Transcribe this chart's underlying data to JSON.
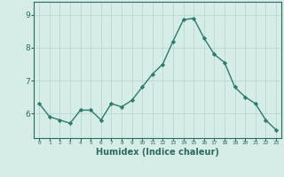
{
  "x": [
    0,
    1,
    2,
    3,
    4,
    5,
    6,
    7,
    8,
    9,
    10,
    11,
    12,
    13,
    14,
    15,
    16,
    17,
    18,
    19,
    20,
    21,
    22,
    23
  ],
  "y": [
    6.3,
    5.9,
    5.8,
    5.7,
    6.1,
    6.1,
    5.8,
    6.3,
    6.2,
    6.4,
    6.8,
    7.2,
    7.5,
    8.2,
    8.85,
    8.9,
    8.3,
    7.8,
    7.55,
    6.8,
    6.5,
    6.3,
    5.8,
    5.5
  ],
  "line_color": "#2d7b6c",
  "marker": "D",
  "marker_size": 2.2,
  "bg_color": "#d6ece6",
  "grid_color": "#b8d8d0",
  "axis_bg": "#d6ece6",
  "xlabel": "Humidex (Indice chaleur)",
  "xlabel_fontsize": 7,
  "ytick_labels": [
    "6",
    "7",
    "8",
    "9"
  ],
  "ytick_values": [
    6,
    7,
    8,
    9
  ],
  "ylim": [
    5.25,
    9.4
  ],
  "xlim": [
    -0.5,
    23.5
  ],
  "xtick_labels": [
    "0",
    "1",
    "2",
    "3",
    "4",
    "5",
    "6",
    "7",
    "8",
    "9",
    "10",
    "11",
    "12",
    "13",
    "14",
    "15",
    "16",
    "17",
    "18",
    "19",
    "20",
    "21",
    "22",
    "23"
  ],
  "tick_color": "#2d6b5c",
  "spine_color": "#2d6b5c",
  "line_width": 1.0
}
